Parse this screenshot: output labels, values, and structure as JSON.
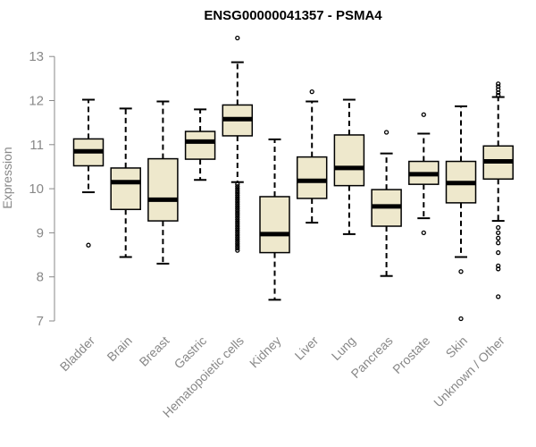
{
  "chart_data": {
    "type": "boxplot",
    "title": "ENSG00000041357 - PSMA4",
    "xlabel": "",
    "ylabel": "Expression",
    "ylim": [
      7,
      13.4
    ],
    "yticks": [
      7,
      8,
      9,
      10,
      11,
      12,
      13
    ],
    "box_color": "#eee8cc",
    "categories": [
      "Bladder",
      "Brain",
      "Breast",
      "Gastric",
      "Hematopoietic cells",
      "Kidney",
      "Liver",
      "Lung",
      "Pancreas",
      "Prostate",
      "Skin",
      "Unknown / Other"
    ],
    "boxes": [
      {
        "name": "Bladder",
        "whisker_low": 9.92,
        "q1": 10.52,
        "median": 10.85,
        "q3": 11.13,
        "whisker_high": 12.02,
        "outliers": [
          8.72
        ]
      },
      {
        "name": "Brain",
        "whisker_low": 8.45,
        "q1": 9.53,
        "median": 10.15,
        "q3": 10.47,
        "whisker_high": 11.82,
        "outliers": []
      },
      {
        "name": "Breast",
        "whisker_low": 8.3,
        "q1": 9.27,
        "median": 9.75,
        "q3": 10.68,
        "whisker_high": 11.98,
        "outliers": []
      },
      {
        "name": "Gastric",
        "whisker_low": 10.2,
        "q1": 10.67,
        "median": 11.07,
        "q3": 11.3,
        "whisker_high": 11.8,
        "outliers": []
      },
      {
        "name": "Hematopoietic cells",
        "whisker_low": 10.15,
        "q1": 11.2,
        "median": 11.58,
        "q3": 11.9,
        "whisker_high": 12.87,
        "outliers": [
          13.42,
          10.1,
          10.05,
          10.0,
          9.95,
          9.9,
          9.85,
          9.8,
          9.75,
          9.7,
          9.65,
          9.6,
          9.55,
          9.5,
          9.45,
          9.4,
          9.35,
          9.3,
          9.25,
          9.2,
          9.15,
          9.1,
          9.05,
          9.0,
          8.95,
          8.9,
          8.85,
          8.8,
          8.75,
          8.7,
          8.65,
          8.6
        ]
      },
      {
        "name": "Kidney",
        "whisker_low": 7.48,
        "q1": 8.55,
        "median": 8.97,
        "q3": 9.82,
        "whisker_high": 11.12,
        "outliers": []
      },
      {
        "name": "Liver",
        "whisker_low": 9.23,
        "q1": 9.78,
        "median": 10.18,
        "q3": 10.72,
        "whisker_high": 11.98,
        "outliers": [
          12.2
        ]
      },
      {
        "name": "Lung",
        "whisker_low": 8.97,
        "q1": 10.07,
        "median": 10.47,
        "q3": 11.22,
        "whisker_high": 12.02,
        "outliers": []
      },
      {
        "name": "Pancreas",
        "whisker_low": 8.02,
        "q1": 9.15,
        "median": 9.6,
        "q3": 9.98,
        "whisker_high": 10.8,
        "outliers": [
          11.28
        ]
      },
      {
        "name": "Prostate",
        "whisker_low": 9.33,
        "q1": 10.1,
        "median": 10.33,
        "q3": 10.62,
        "whisker_high": 11.25,
        "outliers": [
          11.68,
          9.0
        ]
      },
      {
        "name": "Skin",
        "whisker_low": 8.45,
        "q1": 9.68,
        "median": 10.13,
        "q3": 10.62,
        "whisker_high": 11.87,
        "outliers": [
          8.12,
          7.05
        ]
      },
      {
        "name": "Unknown / Other",
        "whisker_low": 9.27,
        "q1": 10.22,
        "median": 10.62,
        "q3": 10.97,
        "whisker_high": 12.08,
        "outliers": [
          12.38,
          12.32,
          12.25,
          12.18,
          12.12,
          9.12,
          9.0,
          8.88,
          8.77,
          8.55,
          8.25,
          8.18,
          7.55
        ]
      }
    ]
  }
}
